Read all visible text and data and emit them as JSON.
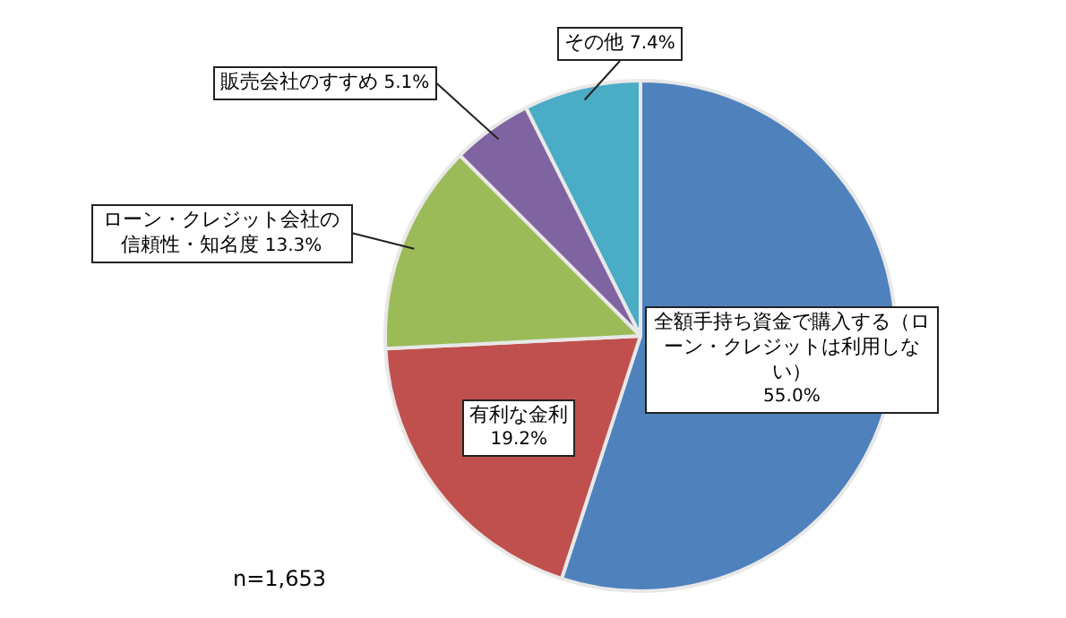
{
  "chart_data": {
    "type": "pie",
    "categories": [
      "全額手持ち資金で購入する（ローン・クレジットは利用しない）",
      "有利な金利",
      "ローン・クレジット会社の信頼性・知名度",
      "販売会社のすすめ",
      "その他"
    ],
    "values": [
      55.0,
      19.2,
      13.3,
      5.1,
      7.4
    ],
    "colors": [
      "#4f81bd",
      "#c0504d",
      "#9bbb59",
      "#8064a2",
      "#4bacc6"
    ],
    "value_labels": [
      "55.0%",
      "19.2%",
      "13.3%",
      "5.1%",
      "7.4%"
    ],
    "legend": false,
    "annotations": [
      "n=1,653"
    ]
  }
}
